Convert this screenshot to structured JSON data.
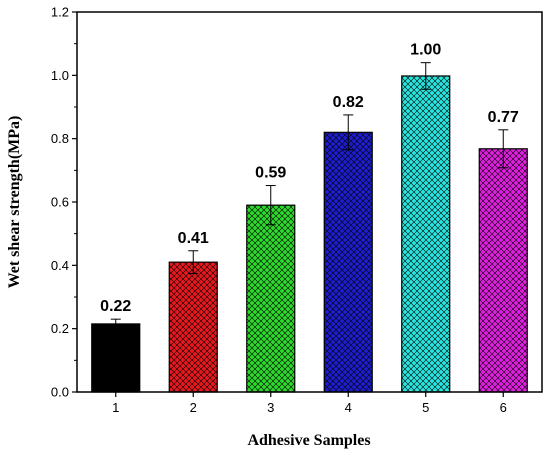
{
  "chart_data": {
    "type": "bar",
    "xlabel": "Adhesive Samples",
    "ylabel": "Wet shear strength(MPa)",
    "ylim": [
      0,
      1.2
    ],
    "yticks": [
      0.0,
      0.2,
      0.4,
      0.6,
      0.8,
      1.0,
      1.2
    ],
    "ytick_labels": [
      "0.0",
      "0.2",
      "0.4",
      "0.6",
      "0.8",
      "1.0",
      "1.2"
    ],
    "categories": [
      "1",
      "2",
      "3",
      "4",
      "5",
      "6"
    ],
    "values": [
      0.215,
      0.41,
      0.59,
      0.82,
      0.998,
      0.768
    ],
    "errors": [
      0.015,
      0.036,
      0.062,
      0.055,
      0.042,
      0.06
    ],
    "data_labels": [
      "0.22",
      "0.41",
      "0.59",
      "0.82",
      "1.00",
      "0.77"
    ],
    "colors": [
      "#000000",
      "#e8191e",
      "#2dd92d",
      "#1d1dcc",
      "#28e6df",
      "#e01fe0"
    ],
    "pattern": "crosshatch",
    "grid": false,
    "legend": "none"
  }
}
